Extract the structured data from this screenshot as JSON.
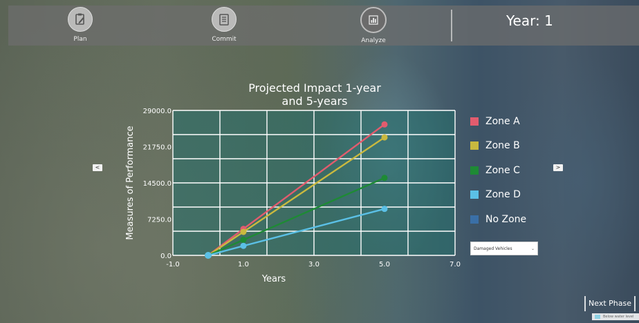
{
  "nav": {
    "items": [
      {
        "label": "Plan",
        "icon": "clipboard-edit-icon"
      },
      {
        "label": "Commit",
        "icon": "document-list-icon"
      },
      {
        "label": "Analyze",
        "icon": "bar-chart-icon",
        "active": true
      }
    ],
    "year_label": "Year: 1"
  },
  "arrows": {
    "left": "<",
    "right": ">"
  },
  "chart_data": {
    "type": "line",
    "title": "Projected Impact 1-year and 5-years",
    "title_lines": [
      "Projected Impact 1-year",
      "and 5-years"
    ],
    "xlabel": "Years",
    "ylabel": "Measures of Performance",
    "xlim": [
      -1.0,
      7.0
    ],
    "ylim": [
      0,
      29000
    ],
    "x_ticks": [
      "-1.0",
      "1.0",
      "3.0",
      "5.0",
      "7.0"
    ],
    "y_ticks": [
      "0.0",
      "7250.0",
      "14500.0",
      "21750.0",
      "29000.0"
    ],
    "grid": true,
    "legend_position": "right",
    "series": [
      {
        "name": "Zone A",
        "color": "#e25c6e",
        "x": [
          0,
          1,
          5
        ],
        "y": [
          0,
          5300,
          26200
        ]
      },
      {
        "name": "Zone B",
        "color": "#c9b93f",
        "x": [
          0,
          1,
          5
        ],
        "y": [
          0,
          4700,
          23600
        ]
      },
      {
        "name": "Zone C",
        "color": "#1e8a35",
        "x": [
          0,
          1,
          5
        ],
        "y": [
          0,
          3100,
          15500
        ]
      },
      {
        "name": "Zone D",
        "color": "#5bc0e6",
        "x": [
          0,
          1,
          5
        ],
        "y": [
          0,
          1900,
          9300
        ]
      },
      {
        "name": "No Zone",
        "color": "#3a6fa6",
        "x": [],
        "y": []
      }
    ]
  },
  "dropdown": {
    "value": "Damaged Vehicles"
  },
  "next_phase_label": "Next Phase",
  "mini_legend": {
    "label": "Below water level",
    "color": "#8fd2e4"
  }
}
